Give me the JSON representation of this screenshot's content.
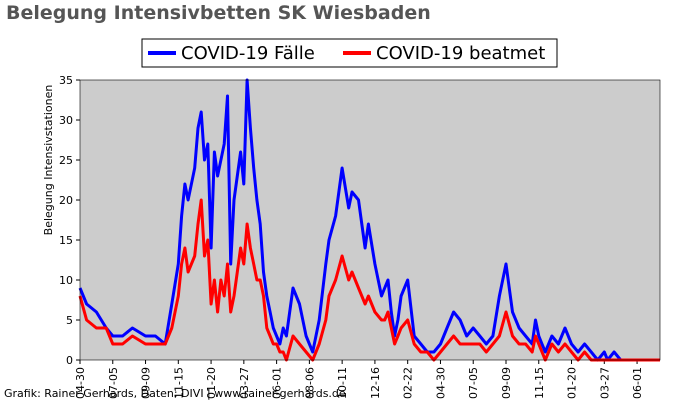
{
  "colors": {
    "faelle": "#0000ff",
    "beatmet": "#ff0000",
    "plot_bg": "#cccccc"
  },
  "chart_data": {
    "type": "line",
    "title": "Belegung Intensivbetten SK Wiesbaden",
    "xlabel": "",
    "ylabel": "Belegung Intensivstationen",
    "ylim": [
      0,
      35
    ],
    "yticks": [
      0,
      5,
      10,
      15,
      20,
      25,
      30,
      35
    ],
    "legend_position": "top-center",
    "grid": false,
    "x_ticks": [
      "04-30",
      "07-05",
      "09-09",
      "11-15",
      "01-20",
      "03-27",
      "06-01",
      "08-06",
      "10-11",
      "12-16",
      "02-22",
      "04-30",
      "07-05",
      "09-09",
      "11-15",
      "01-20",
      "03-27",
      "06-01"
    ],
    "x_tick_positions": [
      0,
      1,
      2,
      3,
      4,
      5,
      6,
      7,
      8,
      9,
      10,
      11,
      12,
      13,
      14,
      15,
      16,
      17
    ],
    "xlim": [
      0,
      17.7
    ],
    "series": [
      {
        "name": "COVID-19 Fälle",
        "color": "#0000ff",
        "x": [
          0,
          0.2,
          0.5,
          0.8,
          1.0,
          1.3,
          1.6,
          2.0,
          2.3,
          2.6,
          2.8,
          3.0,
          3.1,
          3.2,
          3.3,
          3.5,
          3.6,
          3.7,
          3.8,
          3.9,
          4.0,
          4.1,
          4.2,
          4.3,
          4.4,
          4.5,
          4.6,
          4.7,
          4.8,
          4.9,
          5.0,
          5.1,
          5.2,
          5.3,
          5.4,
          5.5,
          5.6,
          5.7,
          5.8,
          5.9,
          6.0,
          6.1,
          6.2,
          6.3,
          6.5,
          6.7,
          6.9,
          7.1,
          7.3,
          7.5,
          7.6,
          7.8,
          8.0,
          8.2,
          8.3,
          8.5,
          8.7,
          8.8,
          9.0,
          9.2,
          9.3,
          9.4,
          9.5,
          9.6,
          9.7,
          9.8,
          10.0,
          10.2,
          10.4,
          10.6,
          10.8,
          11.0,
          11.2,
          11.4,
          11.6,
          11.8,
          12.0,
          12.2,
          12.4,
          12.6,
          12.8,
          13.0,
          13.2,
          13.4,
          13.6,
          13.8,
          13.9,
          14.0,
          14.1,
          14.2,
          14.4,
          14.6,
          14.8,
          15.0,
          15.2,
          15.4,
          15.6,
          15.8,
          16.0,
          16.1,
          16.3,
          16.5,
          16.7,
          17.0,
          17.7
        ],
        "values": [
          9,
          7,
          6,
          4,
          3,
          3,
          4,
          3,
          3,
          2,
          7,
          12,
          18,
          22,
          20,
          24,
          29,
          31,
          25,
          27,
          14,
          26,
          23,
          25,
          27,
          33,
          12,
          20,
          23,
          26,
          22,
          35,
          29,
          24,
          20,
          17,
          11,
          8,
          6,
          4,
          3,
          2,
          4,
          3,
          9,
          7,
          3,
          1,
          5,
          12,
          15,
          18,
          24,
          19,
          21,
          20,
          14,
          17,
          12,
          8,
          9,
          10,
          6,
          3,
          5,
          8,
          10,
          3,
          2,
          1,
          1,
          2,
          4,
          6,
          5,
          3,
          4,
          3,
          2,
          3,
          8,
          12,
          6,
          4,
          3,
          2,
          5,
          3,
          2,
          1,
          3,
          2,
          4,
          2,
          1,
          2,
          1,
          0,
          1,
          0,
          1,
          0,
          0,
          0,
          0
        ],
        "x_flat": true
      },
      {
        "name": "COVID-19 beatmet",
        "color": "#ff0000",
        "x": [
          0,
          0.2,
          0.5,
          0.8,
          1.0,
          1.3,
          1.6,
          2.0,
          2.3,
          2.6,
          2.8,
          3.0,
          3.1,
          3.2,
          3.3,
          3.5,
          3.6,
          3.7,
          3.8,
          3.9,
          4.0,
          4.1,
          4.2,
          4.3,
          4.4,
          4.5,
          4.6,
          4.7,
          4.8,
          4.9,
          5.0,
          5.1,
          5.2,
          5.3,
          5.4,
          5.5,
          5.6,
          5.7,
          5.8,
          5.9,
          6.0,
          6.1,
          6.2,
          6.3,
          6.5,
          6.7,
          6.9,
          7.1,
          7.3,
          7.5,
          7.6,
          7.8,
          8.0,
          8.2,
          8.3,
          8.5,
          8.7,
          8.8,
          9.0,
          9.2,
          9.3,
          9.4,
          9.5,
          9.6,
          9.7,
          9.8,
          10.0,
          10.2,
          10.4,
          10.6,
          10.8,
          11.0,
          11.2,
          11.4,
          11.6,
          11.8,
          12.0,
          12.2,
          12.4,
          12.6,
          12.8,
          13.0,
          13.2,
          13.4,
          13.6,
          13.8,
          13.9,
          14.0,
          14.1,
          14.2,
          14.4,
          14.6,
          14.8,
          15.0,
          15.2,
          15.4,
          15.6,
          15.8,
          16.0,
          16.1,
          16.3,
          16.5,
          16.7,
          17.0,
          17.7
        ],
        "values": [
          8,
          5,
          4,
          4,
          2,
          2,
          3,
          2,
          2,
          2,
          4,
          8,
          12,
          14,
          11,
          13,
          17,
          20,
          13,
          15,
          7,
          10,
          6,
          10,
          8,
          12,
          6,
          8,
          11,
          14,
          12,
          17,
          14,
          12,
          10,
          10,
          8,
          4,
          3,
          2,
          2,
          1,
          1,
          0,
          3,
          2,
          1,
          0,
          2,
          5,
          8,
          10,
          13,
          10,
          11,
          9,
          7,
          8,
          6,
          5,
          5,
          6,
          4,
          2,
          3,
          4,
          5,
          2,
          1,
          1,
          0,
          1,
          2,
          3,
          2,
          2,
          2,
          2,
          1,
          2,
          3,
          6,
          3,
          2,
          2,
          1,
          3,
          2,
          1,
          0,
          2,
          1,
          2,
          1,
          0,
          1,
          0,
          0,
          0,
          0,
          0,
          0,
          0,
          0,
          0
        ]
      }
    ],
    "credit": "Grafik: Rainer Gerhards, Daten: DIVI | www.rainer-gerhards.de"
  }
}
